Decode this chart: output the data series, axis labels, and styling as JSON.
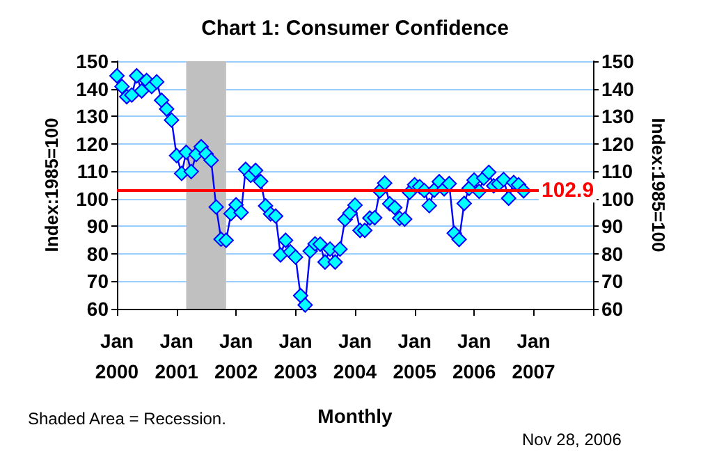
{
  "chart_data": {
    "type": "line",
    "title": "Chart 1: Consumer Confidence",
    "xlabel": "Monthly",
    "ylabel": "Index:1985=100",
    "y2label": "Index:1985=100",
    "annotations": [
      "Shaded Area = Recession.",
      "Nov 28, 2006"
    ],
    "x": [
      "2000-01",
      "2000-02",
      "2000-03",
      "2000-04",
      "2000-05",
      "2000-06",
      "2000-07",
      "2000-08",
      "2000-09",
      "2000-10",
      "2000-11",
      "2000-12",
      "2001-01",
      "2001-02",
      "2001-03",
      "2001-04",
      "2001-05",
      "2001-06",
      "2001-07",
      "2001-08",
      "2001-09",
      "2001-10",
      "2001-11",
      "2001-12",
      "2002-01",
      "2002-02",
      "2002-03",
      "2002-04",
      "2002-05",
      "2002-06",
      "2002-07",
      "2002-08",
      "2002-09",
      "2002-10",
      "2002-11",
      "2002-12",
      "2003-01",
      "2003-02",
      "2003-03",
      "2003-04",
      "2003-05",
      "2003-06",
      "2003-07",
      "2003-08",
      "2003-09",
      "2003-10",
      "2003-11",
      "2003-12",
      "2004-01",
      "2004-02",
      "2004-03",
      "2004-04",
      "2004-05",
      "2004-06",
      "2004-07",
      "2004-08",
      "2004-09",
      "2004-10",
      "2004-11",
      "2004-12",
      "2005-01",
      "2005-02",
      "2005-03",
      "2005-04",
      "2005-05",
      "2005-06",
      "2005-07",
      "2005-08",
      "2005-09",
      "2005-10",
      "2005-11",
      "2005-12",
      "2006-01",
      "2006-02",
      "2006-03",
      "2006-04",
      "2006-05",
      "2006-06",
      "2006-07",
      "2006-08",
      "2006-09",
      "2006-10",
      "2006-11"
    ],
    "series": [
      {
        "color": "#0000ff",
        "values": [
          144.7,
          140.8,
          137.1,
          137.7,
          144.7,
          139.2,
          143.0,
          140.8,
          142.5,
          135.8,
          132.6,
          128.6,
          115.7,
          109.2,
          116.9,
          109.9,
          116.1,
          118.9,
          116.3,
          114.0,
          97.0,
          85.3,
          84.9,
          94.6,
          97.8,
          95.0,
          110.7,
          108.5,
          110.3,
          106.3,
          97.4,
          94.5,
          93.7,
          79.6,
          84.9,
          80.7,
          78.8,
          64.8,
          61.4,
          81.0,
          83.6,
          83.5,
          77.0,
          81.7,
          77.0,
          81.7,
          92.5,
          94.8,
          97.7,
          88.5,
          88.5,
          93.0,
          93.1,
          102.8,
          105.7,
          98.2,
          96.8,
          92.9,
          92.6,
          102.3,
          105.1,
          104.4,
          103.0,
          97.5,
          103.1,
          106.2,
          103.6,
          105.5,
          87.5,
          85.2,
          98.3,
          103.8,
          106.8,
          102.7,
          107.5,
          109.6,
          104.7,
          105.4,
          107.0,
          100.2,
          105.9,
          105.1,
          102.9
        ]
      }
    ],
    "xlim": [
      "2000-01",
      "2008-01"
    ],
    "xticks": [
      {
        "value": "2000-01",
        "label": "Jan 2000"
      },
      {
        "value": "2001-01",
        "label": "Jan 2001"
      },
      {
        "value": "2002-01",
        "label": "Jan 2002"
      },
      {
        "value": "2003-01",
        "label": "Jan 2003"
      },
      {
        "value": "2004-01",
        "label": "Jan 2004"
      },
      {
        "value": "2005-01",
        "label": "Jan 2005"
      },
      {
        "value": "2006-01",
        "label": "Jan 2006"
      },
      {
        "value": "2007-01",
        "label": "Jan 2007"
      },
      {
        "value": "2008-01",
        "label": null
      }
    ],
    "ylim": [
      60,
      150
    ],
    "yticks": [
      60,
      70,
      80,
      90,
      100,
      110,
      120,
      130,
      140,
      150
    ],
    "y2lim": [
      60,
      150
    ],
    "y2ticks": [
      60,
      70,
      80,
      90,
      100,
      110,
      120,
      130,
      140,
      150
    ],
    "ref_lines": [
      {
        "axis": "y",
        "value": 102.9,
        "label": "102.9",
        "color": "#ff0000"
      }
    ],
    "bands": [
      {
        "axis": "x",
        "from": "2001-03",
        "to": "2001-11",
        "color": "#c0c0c0"
      }
    ],
    "grid": "y",
    "marker": "diamond",
    "line_style": "solid"
  }
}
